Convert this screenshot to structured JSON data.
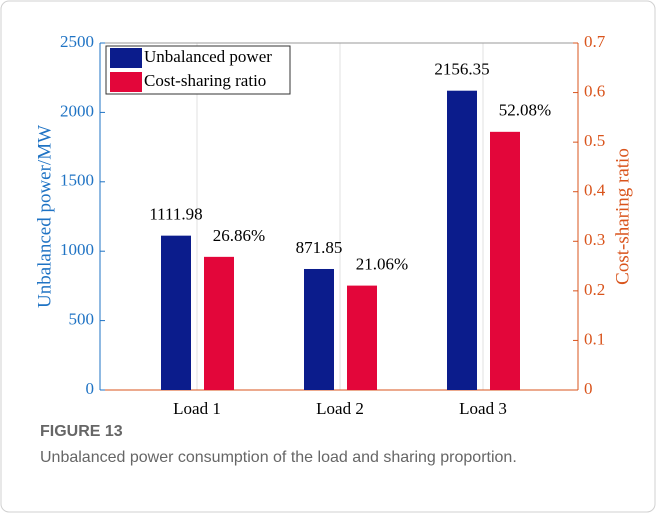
{
  "chart_data": {
    "type": "bar",
    "categories": [
      "Load 1",
      "Load 2",
      "Load 3"
    ],
    "series": [
      {
        "name": "Unbalanced power",
        "color": "#0b1c8c",
        "values": [
          1111.98,
          871.85,
          2156.35
        ]
      },
      {
        "name": "Cost-sharing ratio",
        "color": "#e3063a",
        "axis": "y2",
        "values": [
          0.2686,
          0.2106,
          0.5208
        ],
        "value_labels": [
          "26.86%",
          "21.06%",
          "52.08%"
        ]
      }
    ],
    "ylabel": "Unbalanced power/MW",
    "y2label": "Cost-sharing ratio",
    "ylim": [
      0,
      2500
    ],
    "yticks": [
      0,
      500,
      1000,
      1500,
      2000,
      2500
    ],
    "ycolor": "#1f73c4",
    "y2lim": [
      0,
      0.7
    ],
    "y2ticks": [
      0,
      0.1,
      0.2,
      0.3,
      0.4,
      0.5,
      0.6,
      0.7
    ],
    "y2color": "#d9541c",
    "grid": "x",
    "legend": "upper left"
  },
  "figure": {
    "label": "FIGURE 13",
    "caption": "Unbalanced power consumption of the load and sharing proportion."
  }
}
